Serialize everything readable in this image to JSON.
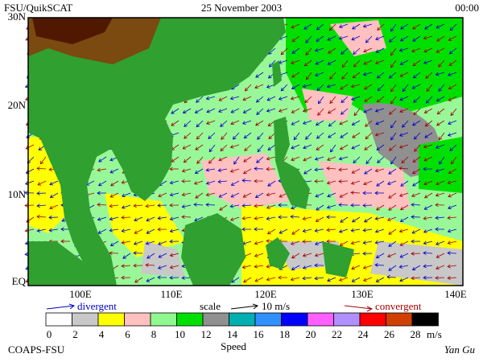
{
  "header": {
    "left": "FSU/QuikSCAT",
    "center": "25 November 2003",
    "right": "00:00"
  },
  "map": {
    "lat_labels": [
      "30N",
      "20N",
      "10N",
      "EQ"
    ],
    "lon_labels": [
      "100E",
      "110E",
      "120E",
      "130E",
      "140E"
    ]
  },
  "legend": {
    "divergent": "divergent",
    "scale": "scale",
    "scale_value": "10 m/s",
    "convergent": "convergent"
  },
  "colorbar": {
    "ticks": [
      0,
      2,
      4,
      6,
      8,
      10,
      12,
      14,
      16,
      18,
      20,
      22,
      24,
      26,
      28
    ],
    "unit": "m/s",
    "title": "Speed",
    "colors": [
      "#ffffff",
      "#c8c8c8",
      "#ffff00",
      "#ffc0c0",
      "#90f890",
      "#00e000",
      "#909090",
      "#00b0b0",
      "#3090ff",
      "#0000ff",
      "#ff60ff",
      "#b090ff",
      "#ff0000",
      "#d04000",
      "#000000"
    ]
  },
  "footer": {
    "left": "COAPS-FSU",
    "right": "Yan Gu"
  }
}
